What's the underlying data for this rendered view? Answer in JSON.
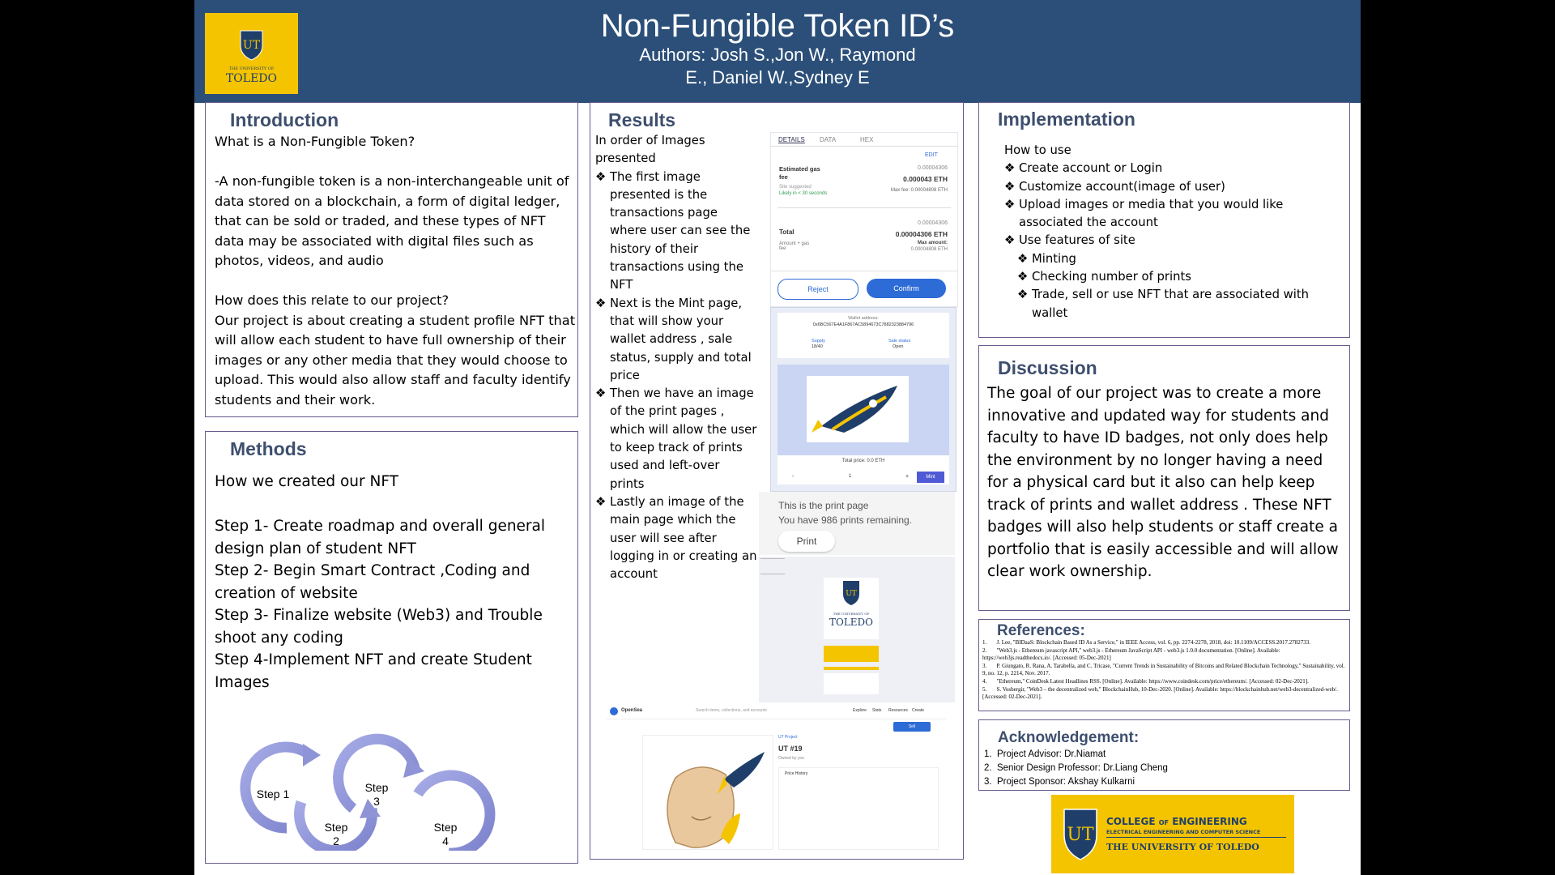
{
  "header": {
    "title": "Non-Fungible Token ID’s",
    "authors_line1": "Authors: Josh S.,Jon W., Raymond",
    "authors_line2": "E., Daniel W.,Sydney E"
  },
  "logo_top": {
    "university_small": "THE UNIVERSITY OF",
    "university": "TOLEDO",
    "monogram": "UT"
  },
  "introduction": {
    "heading": "Introduction",
    "q1": "What is a Non-Fungible Token?",
    "p1": "-A non-fungible token is a non-interchangeable unit of data stored on a blockchain, a form of digital ledger, that can be sold or traded, and these types of NFT data may be associated with digital files such as photos, videos, and audio",
    "q2": "How does this relate to our project?",
    "p2": "Our project is about creating a student profile NFT that will allow each student to have full ownership of their images or any other media that they would choose to upload. This would also allow staff and faculty identify students and their work."
  },
  "methods": {
    "heading": "Methods",
    "intro": "How we created our NFT",
    "steps": [
      "Step 1- Create roadmap and overall general design plan of student NFT",
      "Step 2- Begin Smart Contract ,Coding and creation of website",
      "Step 3- Finalize website (Web3) and Trouble shoot any coding",
      "Step 4-Implement NFT and create Student Images"
    ],
    "diagram": {
      "step1": "Step 1",
      "step2a": "Step",
      "step2b": "2",
      "step3a": "Step",
      "step3b": "3",
      "step4a": "Step",
      "step4b": "4"
    }
  },
  "results": {
    "heading": "Results",
    "intro": "In order of Images presented",
    "bullets": [
      "The first image presented is the transactions page where user can see the history of their transactions using the NFT",
      "Next is the Mint page, that will show your wallet address , sale status, supply  and total price",
      "Then we have an image of the print pages , which will allow the user to keep track of prints used and left-over prints",
      "Lastly an image of the main page which the user will see after logging in or creating an account"
    ],
    "tx": {
      "tab1": "DETAILS",
      "tab2": "DATA",
      "tab3": "HEX",
      "edit": "EDIT",
      "gas_label": "Estimated gas fee",
      "gas_small": "0.00004306",
      "gas_eth": "0.000043 ETH",
      "suggested": "Site suggested",
      "likely": "Likely in < 30 seconds",
      "maxfee": "Max fee: 0.00004808 ETH",
      "total_label": "Total",
      "total_small": "0.00004306",
      "total_eth": "0.00004306 ETH",
      "amount": "Amount + gas fee",
      "max_amount": "Max amount:",
      "max_val": "0.00004808 ETH",
      "reject": "Reject",
      "confirm": "Confirm"
    },
    "mint": {
      "wallet_label": "Wallet address:",
      "wallet": "0x6BC567E4A1F867AC5894673C7882323884796",
      "supply_label": "Supply",
      "supply": "18/40",
      "status_label": "Sale status",
      "status": "Open",
      "total": "Total price: 0.0 ETH",
      "qty": "1",
      "minus": "-",
      "plus": "+",
      "mint_btn": "Mint"
    },
    "print": {
      "line1": "This is the print page",
      "line2": "You have 986 prints remaining.",
      "button": "Print"
    },
    "main": {
      "logo_small": "THE UNIVERSITY OF",
      "logo": "TOLEDO",
      "monogram": "UT"
    },
    "opensea": {
      "brand": "OpenSea",
      "search": "Search items, collections, and accounts",
      "nav1": "Explore",
      "nav2": "Stats",
      "nav3": "Resources",
      "nav4": "Create",
      "item": "UT #19",
      "collection": "UT Project",
      "owner": "Owned by you",
      "price": "Price History",
      "sell": "Sell"
    }
  },
  "implementation": {
    "heading": "Implementation",
    "intro": "How to use",
    "items": [
      "Create account or Login",
      "Customize account(image of user)",
      "Upload images or media that you would like associated the account",
      "Use features of site"
    ],
    "subitems": [
      "Minting",
      "Checking number of prints",
      "Trade, sell or use NFT that are associated with wallet"
    ]
  },
  "discussion": {
    "heading": "Discussion",
    "text": " The goal of our project was to create a more innovative and updated way for students and faculty to have ID badges, not only does help the environment by no longer having a need for a physical card but  it also can help keep track of prints and wallet address . These NFT badges will also help students or staff create a portfolio that is easily accessible and will allow clear  work ownership."
  },
  "references": {
    "heading": "References:",
    "items": [
      "J. Lee, \"BIDaaS: Blockchain Based ID As a Service,\" in IEEE Access, vol. 6, pp. 2274-2278, 2018, doi: 10.1109/ACCESS.2017.2782733.",
      "\"Web3.js - Ethereum javascript API,\" web3.js - Ethereum JavaScript API - web3.js 1.0.0 documentation. [Online]. Available: https://web3js.readthedocs.io/. [Accessed: 05-Dec-2021]",
      "P. Giungato, R. Rana, A. Tarabella, and C. Tricase, \"Current Trends in Sustainability of Bitcoins and Related Blockchain Technology,\" Sustainability, vol. 9, no. 12, p. 2214, Nov. 2017.",
      "\"Ethereum,\" CoinDesk Latest Headlines RSS. [Online]. Available: https://www.coindesk.com/price/ethereum/. [Accessed: 02-Dec-2021].",
      "S. Vosbergir, \"Web3 – the decentralized web,\" BlockchainHub, 10-Dec-2020. [Online]. Available: https://blockchainhub.net/web3-decentralized-web/. [Accessed: 02-Dec-2021]."
    ]
  },
  "acknowledgement": {
    "heading": "Acknowledgement:",
    "items": [
      "Project Advisor: Dr.Niamat",
      "Senior Design Professor: Dr.Liang Cheng",
      "Project Sponsor: Akshay Kulkarni"
    ]
  },
  "logo_bottom": {
    "monogram": "UT",
    "college_a": "COLLEGE",
    "college_of": "OF",
    "college_b": "ENGINEERING",
    "dept": "ELECTRICAL ENGINEERING AND COMPUTER SCIENCE",
    "university": "THE UNIVERSITY OF TOLEDO"
  },
  "colors": {
    "header": "#2b4f78",
    "gold": "#f5c400",
    "heading": "#3e4f6e",
    "border": "#6a5a8c",
    "arrow": "#8e94d6"
  }
}
